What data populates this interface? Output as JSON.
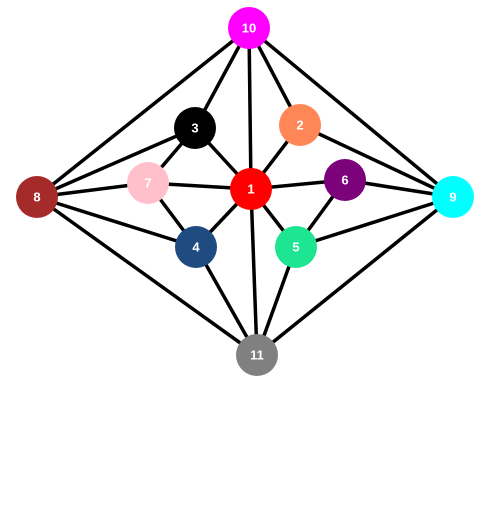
{
  "graph": {
    "nodes": [
      {
        "id": "1",
        "label": "1",
        "color": "#ff0000",
        "text_color": "#ffffff"
      },
      {
        "id": "2",
        "label": "2",
        "color": "#ff8657",
        "text_color": "#ffffff"
      },
      {
        "id": "3",
        "label": "3",
        "color": "#000000",
        "text_color": "#ffffff"
      },
      {
        "id": "4",
        "label": "4",
        "color": "#1f4b80",
        "text_color": "#ffffff"
      },
      {
        "id": "5",
        "label": "5",
        "color": "#1de592",
        "text_color": "#ffffff"
      },
      {
        "id": "6",
        "label": "6",
        "color": "#7b027b",
        "text_color": "#ffffff"
      },
      {
        "id": "7",
        "label": "7",
        "color": "#ffc0cb",
        "text_color": "#ffffff"
      },
      {
        "id": "8",
        "label": "8",
        "color": "#a52a2a",
        "text_color": "#ffffff"
      },
      {
        "id": "9",
        "label": "9",
        "color": "#00ffff",
        "text_color": "#ffffff"
      },
      {
        "id": "10",
        "label": "10",
        "color": "#ff00ff",
        "text_color": "#ffffff"
      },
      {
        "id": "11",
        "label": "11",
        "color": "#808080",
        "text_color": "#ffffff"
      }
    ],
    "edges": [
      [
        "10",
        "3"
      ],
      [
        "10",
        "2"
      ],
      [
        "10",
        "1"
      ],
      [
        "10",
        "8"
      ],
      [
        "10",
        "9"
      ],
      [
        "3",
        "1"
      ],
      [
        "3",
        "7"
      ],
      [
        "3",
        "8"
      ],
      [
        "2",
        "1"
      ],
      [
        "2",
        "9"
      ],
      [
        "8",
        "7"
      ],
      [
        "8",
        "4"
      ],
      [
        "8",
        "11"
      ],
      [
        "7",
        "1"
      ],
      [
        "7",
        "4"
      ],
      [
        "1",
        "6"
      ],
      [
        "1",
        "4"
      ],
      [
        "1",
        "5"
      ],
      [
        "1",
        "11"
      ],
      [
        "6",
        "9"
      ],
      [
        "6",
        "5"
      ],
      [
        "9",
        "5"
      ],
      [
        "9",
        "11"
      ],
      [
        "4",
        "11"
      ],
      [
        "5",
        "11"
      ]
    ]
  }
}
